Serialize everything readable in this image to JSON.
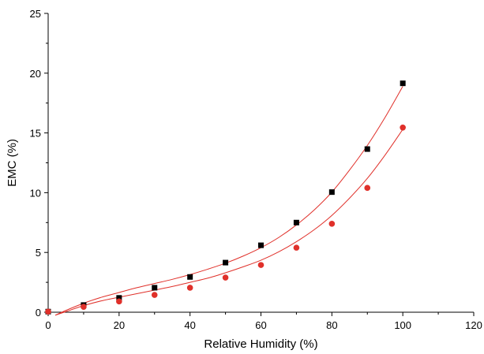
{
  "chart_data": {
    "type": "scatter",
    "title": "",
    "xlabel": "Relative Humidity (%)",
    "ylabel": "EMC (%)",
    "xlim": [
      0,
      120
    ],
    "ylim": [
      0,
      25
    ],
    "xticks": [
      0,
      20,
      40,
      60,
      80,
      100,
      120
    ],
    "yticks": [
      0,
      5,
      10,
      15,
      20,
      25
    ],
    "xtick_labels": [
      "0",
      "20",
      "40",
      "60",
      "80",
      "100",
      "120"
    ],
    "ytick_labels": [
      "0",
      "5",
      "10",
      "15",
      "20",
      "25"
    ],
    "grid": false,
    "legend": "none",
    "fit_color": "#e0302a",
    "series": [
      {
        "marker": "square",
        "color": "#000000",
        "x": [
          0,
          10,
          20,
          30,
          40,
          50,
          60,
          70,
          80,
          90,
          100
        ],
        "y": [
          0.05,
          0.6,
          1.2,
          2.05,
          2.95,
          4.15,
          5.6,
          7.5,
          10.05,
          13.65,
          19.15
        ],
        "fit": {
          "x": [
            2,
            5,
            10,
            15,
            20,
            25,
            30,
            35,
            40,
            45,
            50,
            55,
            60,
            65,
            70,
            75,
            80,
            85,
            90,
            95,
            100
          ],
          "y": [
            -0.25,
            0.15,
            0.75,
            1.25,
            1.65,
            2.05,
            2.4,
            2.75,
            3.15,
            3.6,
            4.1,
            4.7,
            5.4,
            6.25,
            7.3,
            8.55,
            10.05,
            11.9,
            13.95,
            16.3,
            18.9
          ]
        }
      },
      {
        "marker": "circle",
        "color": "#e0302a",
        "x": [
          0,
          10,
          20,
          30,
          40,
          50,
          60,
          70,
          80,
          90,
          100
        ],
        "y": [
          0.05,
          0.45,
          0.9,
          1.45,
          2.05,
          2.9,
          3.95,
          5.4,
          7.4,
          10.4,
          15.45
        ],
        "fit": {
          "x": [
            2,
            5,
            10,
            15,
            20,
            25,
            30,
            35,
            40,
            45,
            50,
            55,
            60,
            65,
            70,
            75,
            80,
            85,
            90,
            95,
            100
          ],
          "y": [
            -0.25,
            0.05,
            0.55,
            0.95,
            1.25,
            1.55,
            1.85,
            2.15,
            2.5,
            2.85,
            3.3,
            3.8,
            4.35,
            5.05,
            5.9,
            6.9,
            8.1,
            9.55,
            11.2,
            13.15,
            15.3
          ]
        }
      }
    ]
  }
}
